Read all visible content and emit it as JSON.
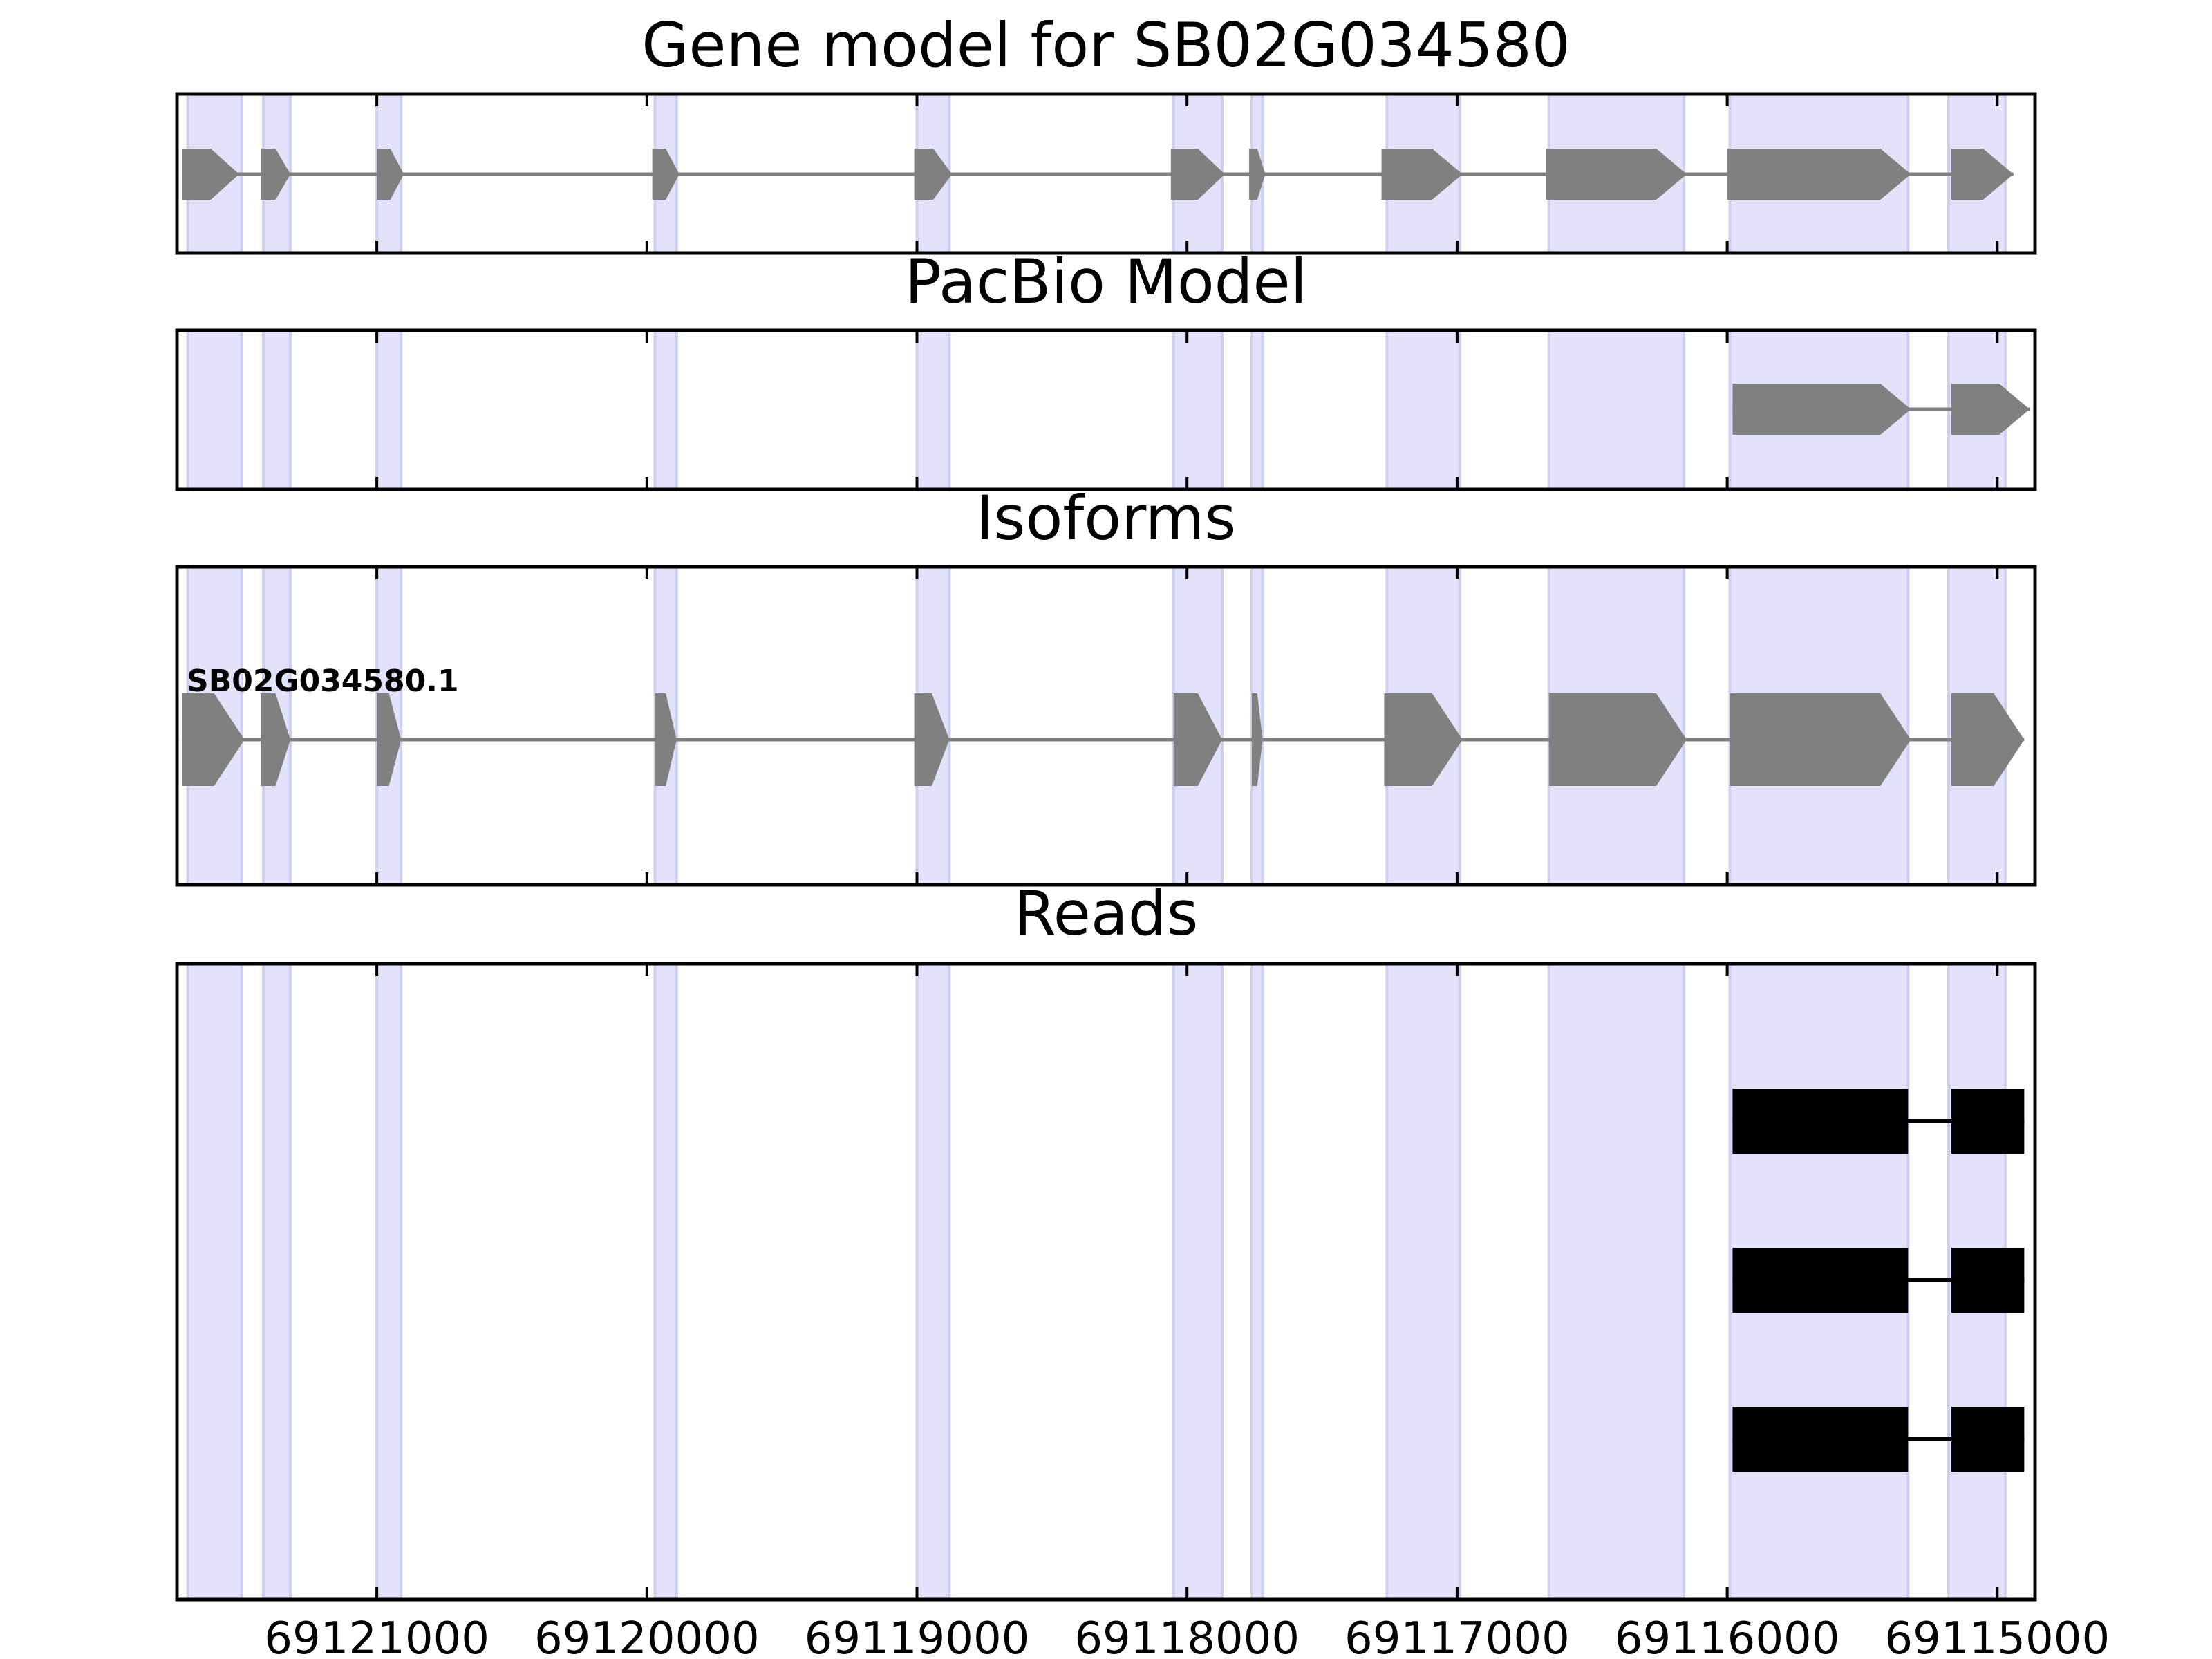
{
  "chart_data": {
    "type": "gene-structure",
    "x_reversed": true,
    "xlim": [
      69121740,
      69114860
    ],
    "xticks": [
      {
        "value": 69121000,
        "label": "69121000"
      },
      {
        "value": 69120000,
        "label": "69120000"
      },
      {
        "value": 69119000,
        "label": "69119000"
      },
      {
        "value": 69118000,
        "label": "69118000"
      },
      {
        "value": 69117000,
        "label": "69117000"
      },
      {
        "value": 69116000,
        "label": "69116000"
      },
      {
        "value": 69115000,
        "label": "69115000"
      }
    ],
    "exon_highlights": [
      [
        69121700,
        69121500
      ],
      [
        69121420,
        69121320
      ],
      [
        69121000,
        69120910
      ],
      [
        69119970,
        69119890
      ],
      [
        69119000,
        69118880
      ],
      [
        69118050,
        69117870
      ],
      [
        69117760,
        69117720
      ],
      [
        69117260,
        69116990
      ],
      [
        69116660,
        69116160
      ],
      [
        69115990,
        69115330
      ],
      [
        69115180,
        69114970
      ]
    ],
    "panels": [
      {
        "title": "Gene model for SB02G034580",
        "tracks": [
          {
            "label": "",
            "exons": [
              [
                69121720,
                69121510
              ],
              [
                69121430,
                69121320
              ],
              [
                69121000,
                69120900
              ],
              [
                69119980,
                69119880
              ],
              [
                69119010,
                69118870
              ],
              [
                69118060,
                69117860
              ],
              [
                69117770,
                69117710
              ],
              [
                69117280,
                69116980
              ],
              [
                69116670,
                69116150
              ],
              [
                69116000,
                69115320
              ],
              [
                69115170,
                69114940
              ]
            ]
          }
        ]
      },
      {
        "title": "PacBio Model",
        "tracks": [
          {
            "label": "",
            "exons": [
              [
                69115980,
                69115320
              ],
              [
                69115170,
                69114880
              ]
            ]
          }
        ]
      },
      {
        "title": "Isoforms",
        "tracks": [
          {
            "label": "SB02G034580.1",
            "exons": [
              [
                69121720,
                69121490
              ],
              [
                69121430,
                69121320
              ],
              [
                69121000,
                69120910
              ],
              [
                69119970,
                69119890
              ],
              [
                69119010,
                69118880
              ],
              [
                69118050,
                69117870
              ],
              [
                69117760,
                69117720
              ],
              [
                69117270,
                69116980
              ],
              [
                69116660,
                69116150
              ],
              [
                69115990,
                69115320
              ],
              [
                69115170,
                69114900
              ]
            ]
          }
        ]
      },
      {
        "title": "Reads",
        "tracks": [
          {
            "label": "",
            "exons": [
              [
                69115980,
                69115330
              ],
              [
                69115170,
                69114900
              ]
            ]
          },
          {
            "label": "",
            "exons": [
              [
                69115980,
                69115330
              ],
              [
                69115170,
                69114900
              ]
            ]
          },
          {
            "label": "",
            "exons": [
              [
                69115980,
                69115330
              ],
              [
                69115170,
                69114900
              ]
            ]
          }
        ]
      }
    ]
  },
  "colors": {
    "highlight": "#e2e2fb",
    "highlight_edge": "#cfcfef",
    "model_feature": "#808080",
    "read_feature": "#000000",
    "axes": "#000000"
  }
}
